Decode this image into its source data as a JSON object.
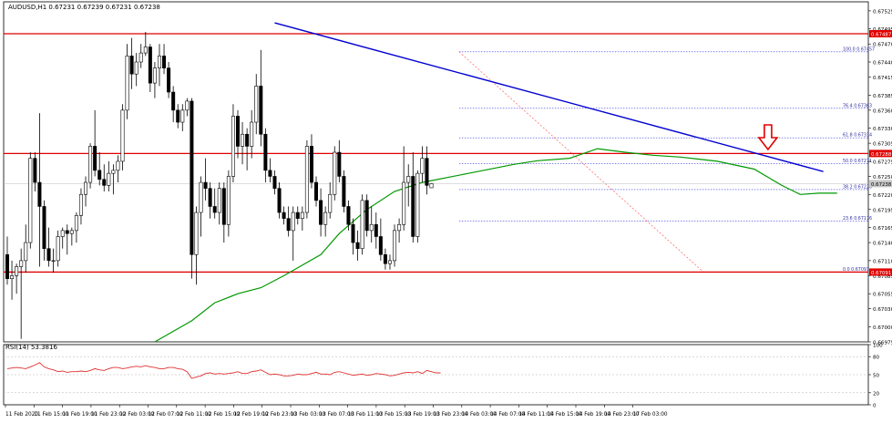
{
  "window": {
    "header": "AUDUSD,H1  0.67231 0.67239 0.67231 0.67238"
  },
  "colors": {
    "bull_candle": "#ffffff",
    "bear_candle": "#000000",
    "candle_outline": "#000000",
    "support_resistance": "#e00000",
    "trendline": "#0000d0",
    "moving_average": "#009900",
    "fibonacci": "#3a3ae0",
    "fib_diagonal": "#ff6060",
    "rsi_line": "#e03030",
    "arrow": "#e00000",
    "price_tag_red": "#e00000",
    "price_tag_grey": "#c8c8c8"
  },
  "chart_data": {
    "type": "candlestick",
    "symbol": "AUDUSD",
    "timeframe": "H1",
    "price_axis_ticks": [
      "0.67525",
      "0.67495",
      "0.67470",
      "0.67440",
      "0.67415",
      "0.67385",
      "0.67360",
      "0.67330",
      "0.67305",
      "0.67275",
      "0.67250",
      "0.67220",
      "0.67195",
      "0.67165",
      "0.67140",
      "0.67110",
      "0.67085",
      "0.67055",
      "0.67030",
      "0.67000",
      "0.66975"
    ],
    "time_axis_labels": [
      "11 Feb 2020",
      "11 Feb 15:00",
      "11 Feb 19:00",
      "11 Feb 23:00",
      "12 Feb 03:00",
      "12 Feb 07:00",
      "12 Feb 11:00",
      "12 Feb 15:00",
      "12 Feb 19:00",
      "12 Feb 23:00",
      "13 Feb 03:00",
      "13 Feb 07:00",
      "13 Feb 11:00",
      "13 Feb 15:00",
      "13 Feb 19:00",
      "13 Feb 23:00",
      "14 Feb 03:00",
      "14 Feb 07:00",
      "14 Feb 11:00",
      "14 Feb 15:00",
      "14 Feb 19:00",
      "14 Feb 23:00",
      "17 Feb 03:00"
    ],
    "price_range": [
      0.66975,
      0.6754
    ],
    "candles": [
      [
        0.6712,
        0.6715,
        0.6707,
        0.6708
      ],
      [
        0.6708,
        0.6711,
        0.67045,
        0.67085
      ],
      [
        0.67085,
        0.67105,
        0.67055,
        0.671
      ],
      [
        0.671,
        0.6713,
        0.6698,
        0.6711
      ],
      [
        0.6711,
        0.6717,
        0.6709,
        0.6714
      ],
      [
        0.6714,
        0.6729,
        0.6713,
        0.6728
      ],
      [
        0.6728,
        0.6729,
        0.67225,
        0.6724
      ],
      [
        0.6724,
        0.67355,
        0.671,
        0.672
      ],
      [
        0.672,
        0.6721,
        0.6711,
        0.6713
      ],
      [
        0.6713,
        0.67165,
        0.671,
        0.6711
      ],
      [
        0.6711,
        0.6713,
        0.6709,
        0.6711
      ],
      [
        0.6711,
        0.6716,
        0.671,
        0.6715
      ],
      [
        0.6715,
        0.67165,
        0.6713,
        0.6716
      ],
      [
        0.6716,
        0.6717,
        0.6712,
        0.67155
      ],
      [
        0.67155,
        0.67165,
        0.67135,
        0.6716
      ],
      [
        0.6716,
        0.6719,
        0.6714,
        0.67185
      ],
      [
        0.67185,
        0.6723,
        0.6717,
        0.6722
      ],
      [
        0.6722,
        0.6725,
        0.672,
        0.6724
      ],
      [
        0.6724,
        0.67305,
        0.6723,
        0.673
      ],
      [
        0.673,
        0.6736,
        0.6725,
        0.6726
      ],
      [
        0.6726,
        0.6729,
        0.67235,
        0.67245
      ],
      [
        0.67245,
        0.6727,
        0.67225,
        0.67235
      ],
      [
        0.67235,
        0.67275,
        0.67225,
        0.67255
      ],
      [
        0.67255,
        0.6727,
        0.6722,
        0.6726
      ],
      [
        0.6726,
        0.67285,
        0.6724,
        0.67275
      ],
      [
        0.67275,
        0.6737,
        0.6726,
        0.6736
      ],
      [
        0.6736,
        0.6747,
        0.67345,
        0.6745
      ],
      [
        0.6745,
        0.6748,
        0.67395,
        0.6742
      ],
      [
        0.6742,
        0.67455,
        0.674,
        0.6744
      ],
      [
        0.6744,
        0.6747,
        0.6743,
        0.67455
      ],
      [
        0.67455,
        0.6749,
        0.6745,
        0.67465
      ],
      [
        0.67465,
        0.6747,
        0.6739,
        0.67405
      ],
      [
        0.67405,
        0.6744,
        0.6738,
        0.6743
      ],
      [
        0.6743,
        0.6747,
        0.674,
        0.6745
      ],
      [
        0.6745,
        0.6747,
        0.6742,
        0.6743
      ],
      [
        0.6743,
        0.6744,
        0.6738,
        0.6739
      ],
      [
        0.6739,
        0.674,
        0.6734,
        0.6736
      ],
      [
        0.6736,
        0.6737,
        0.6733,
        0.6734
      ],
      [
        0.6734,
        0.6737,
        0.67325,
        0.6736
      ],
      [
        0.6736,
        0.6738,
        0.6735,
        0.67375
      ],
      [
        0.67375,
        0.6738,
        0.6708,
        0.6712
      ],
      [
        0.6712,
        0.672,
        0.6707,
        0.6719
      ],
      [
        0.6719,
        0.6725,
        0.6715,
        0.6724
      ],
      [
        0.6724,
        0.6728,
        0.6721,
        0.6723
      ],
      [
        0.6723,
        0.6724,
        0.6718,
        0.672
      ],
      [
        0.672,
        0.6723,
        0.6718,
        0.6719
      ],
      [
        0.6719,
        0.6724,
        0.6717,
        0.6723
      ],
      [
        0.6723,
        0.6724,
        0.6714,
        0.6717
      ],
      [
        0.6717,
        0.6726,
        0.6715,
        0.6725
      ],
      [
        0.6725,
        0.6737,
        0.6724,
        0.6735
      ],
      [
        0.6735,
        0.6736,
        0.6728,
        0.673
      ],
      [
        0.673,
        0.6734,
        0.6727,
        0.6732
      ],
      [
        0.6732,
        0.6733,
        0.6726,
        0.673
      ],
      [
        0.673,
        0.6736,
        0.6728,
        0.6734
      ],
      [
        0.6734,
        0.6742,
        0.6732,
        0.674
      ],
      [
        0.674,
        0.6746,
        0.673,
        0.6732
      ],
      [
        0.6732,
        0.6733,
        0.6724,
        0.6726
      ],
      [
        0.6726,
        0.6728,
        0.6724,
        0.6725
      ],
      [
        0.6725,
        0.6726,
        0.6722,
        0.6723
      ],
      [
        0.6723,
        0.6724,
        0.6718,
        0.6719
      ],
      [
        0.6719,
        0.672,
        0.6717,
        0.6718
      ],
      [
        0.6718,
        0.672,
        0.6715,
        0.6716
      ],
      [
        0.6716,
        0.672,
        0.6711,
        0.6719
      ],
      [
        0.6719,
        0.672,
        0.6717,
        0.6718
      ],
      [
        0.6718,
        0.672,
        0.6716,
        0.6719
      ],
      [
        0.6719,
        0.6731,
        0.6718,
        0.673
      ],
      [
        0.673,
        0.6732,
        0.6723,
        0.6724
      ],
      [
        0.6724,
        0.6725,
        0.672,
        0.6721
      ],
      [
        0.6721,
        0.6723,
        0.6715,
        0.6717
      ],
      [
        0.6717,
        0.672,
        0.6715,
        0.6719
      ],
      [
        0.6719,
        0.6724,
        0.6718,
        0.6722
      ],
      [
        0.6722,
        0.673,
        0.6721,
        0.6729
      ],
      [
        0.6729,
        0.6731,
        0.6724,
        0.6725
      ],
      [
        0.6725,
        0.6726,
        0.6719,
        0.672
      ],
      [
        0.672,
        0.6721,
        0.6716,
        0.6717
      ],
      [
        0.6717,
        0.6718,
        0.6712,
        0.6714
      ],
      [
        0.6714,
        0.6716,
        0.6711,
        0.6713
      ],
      [
        0.6713,
        0.6722,
        0.6712,
        0.6721
      ],
      [
        0.6721,
        0.6722,
        0.6715,
        0.6716
      ],
      [
        0.6716,
        0.672,
        0.6714,
        0.6717
      ],
      [
        0.6717,
        0.6719,
        0.6713,
        0.6715
      ],
      [
        0.6715,
        0.6718,
        0.6711,
        0.6712
      ],
      [
        0.6712,
        0.6713,
        0.67095,
        0.67105
      ],
      [
        0.67105,
        0.6712,
        0.67095,
        0.6711
      ],
      [
        0.6711,
        0.6717,
        0.671,
        0.6716
      ],
      [
        0.6716,
        0.6718,
        0.6714,
        0.6717
      ],
      [
        0.6717,
        0.673,
        0.6716,
        0.6724
      ],
      [
        0.6724,
        0.6727,
        0.672,
        0.6725
      ],
      [
        0.6725,
        0.6729,
        0.6714,
        0.6715
      ],
      [
        0.6715,
        0.6726,
        0.6714,
        0.67255
      ],
      [
        0.67255,
        0.673,
        0.6724,
        0.6728
      ],
      [
        0.6728,
        0.673,
        0.6722,
        0.67235
      ],
      [
        0.67231,
        0.67239,
        0.67231,
        0.67238
      ]
    ],
    "horizontal_lines": [
      {
        "label": "0.67487",
        "price": 0.67487
      },
      {
        "label": "0.67288",
        "price": 0.67288
      },
      {
        "label": "0.67091",
        "price": 0.67091
      }
    ],
    "current_price_label": "0.67238",
    "current_price": 0.67238,
    "trendline": {
      "from": [
        58,
        0.67505
      ],
      "to": [
        177,
        0.67258
      ]
    },
    "moving_average": [
      [
        32,
        0.66975
      ],
      [
        40,
        0.6701
      ],
      [
        45,
        0.6704
      ],
      [
        50,
        0.67055
      ],
      [
        55,
        0.67065
      ],
      [
        60,
        0.67085
      ],
      [
        68,
        0.6712
      ],
      [
        72,
        0.67155
      ],
      [
        78,
        0.67195
      ],
      [
        84,
        0.67225
      ],
      [
        90,
        0.6724
      ],
      [
        100,
        0.67255
      ],
      [
        110,
        0.6727
      ],
      [
        115,
        0.67276
      ],
      [
        122,
        0.6728
      ],
      [
        128,
        0.67296
      ],
      [
        134,
        0.6729
      ],
      [
        140,
        0.67285
      ],
      [
        146,
        0.67282
      ],
      [
        154,
        0.67275
      ],
      [
        162,
        0.67262
      ],
      [
        168,
        0.67235
      ],
      [
        172,
        0.6722
      ],
      [
        176,
        0.67222
      ],
      [
        180,
        0.67222
      ]
    ],
    "fibonacci": {
      "x_start": 98,
      "x_end": 212,
      "levels": [
        {
          "label": "100.0 0.67457",
          "price": 0.67457
        },
        {
          "label": "76.4 0.67363",
          "price": 0.67363
        },
        {
          "label": "61.8 0.67314",
          "price": 0.67314
        },
        {
          "label": "50.0 0.67271",
          "price": 0.67271
        },
        {
          "label": "38.2 0.67228",
          "price": 0.67228
        },
        {
          "label": "23.6 0.67176",
          "price": 0.67176
        },
        {
          "label": "0.0 0.67091",
          "price": 0.67091
        }
      ],
      "diagonal": {
        "from": [
          98,
          0.67457
        ],
        "to": [
          151,
          0.67091
        ]
      }
    },
    "arrow": {
      "index": 165,
      "price": 0.6729
    },
    "rsi": {
      "label": "RSI(14) 53.3816",
      "range": [
        0,
        100
      ],
      "ticks": [
        "100",
        "80",
        "50",
        "20",
        "0"
      ],
      "levels": [
        80,
        50,
        20
      ],
      "values": [
        60,
        61,
        62,
        61,
        60,
        63,
        66,
        70,
        63,
        60,
        58,
        55,
        56,
        54,
        55,
        55,
        56,
        55,
        57,
        60,
        58,
        57,
        60,
        62,
        62,
        60,
        61,
        63,
        64,
        63,
        65,
        63,
        62,
        60,
        60,
        62,
        62,
        60,
        59,
        55,
        44,
        46,
        48,
        52,
        53,
        51,
        52,
        51,
        52,
        53,
        55,
        52,
        52,
        55,
        56,
        58,
        54,
        50,
        51,
        50,
        48,
        48,
        49,
        51,
        50,
        50,
        52,
        54,
        51,
        51,
        50,
        54,
        55,
        53,
        51,
        49,
        50,
        51,
        49,
        50,
        52,
        51,
        50,
        48,
        49,
        51,
        53,
        54,
        53,
        55,
        52,
        57,
        55,
        53,
        53
      ]
    }
  }
}
